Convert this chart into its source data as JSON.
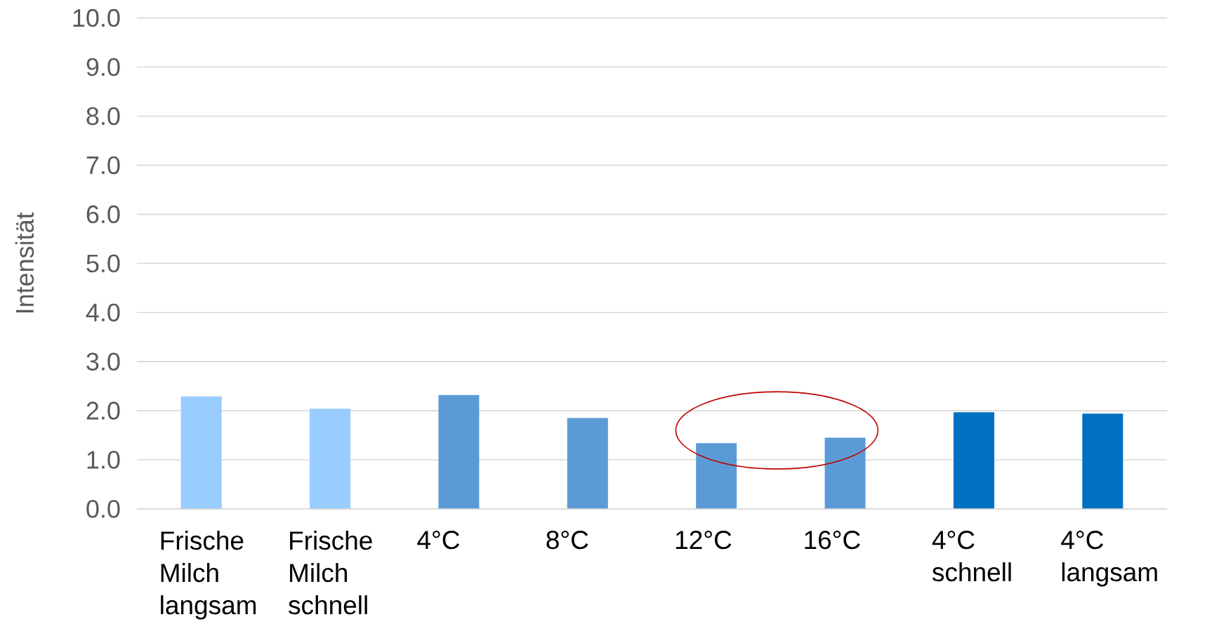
{
  "chart_data": {
    "type": "bar",
    "ylabel": "Intensität",
    "categories": [
      "Frische Milch langsam",
      "Frische Milch schnell",
      "4°C",
      "8°C",
      "12°C",
      "16°C",
      "4°C schnell",
      "4°C langsam"
    ],
    "values": [
      2.29,
      2.04,
      2.32,
      1.85,
      1.34,
      1.45,
      1.97,
      1.94
    ],
    "colors": [
      "#99ccff",
      "#99ccff",
      "#5b9bd5",
      "#5b9bd5",
      "#5b9bd5",
      "#5b9bd5",
      "#0070c0",
      "#0070c0"
    ],
    "ylim": [
      0,
      10
    ],
    "yticks": [
      {
        "value": 0,
        "label": "0.0"
      },
      {
        "value": 1,
        "label": "1.0"
      },
      {
        "value": 2,
        "label": "2.0"
      },
      {
        "value": 3,
        "label": "3.0"
      },
      {
        "value": 4,
        "label": "4.0"
      },
      {
        "value": 5,
        "label": "5.0"
      },
      {
        "value": 6,
        "label": "6.0"
      },
      {
        "value": 7,
        "label": "7.0"
      },
      {
        "value": 8,
        "label": "8.0"
      },
      {
        "value": 9,
        "label": "9.0"
      },
      {
        "value": 10,
        "label": "10.0"
      }
    ],
    "grid": "y"
  }
}
